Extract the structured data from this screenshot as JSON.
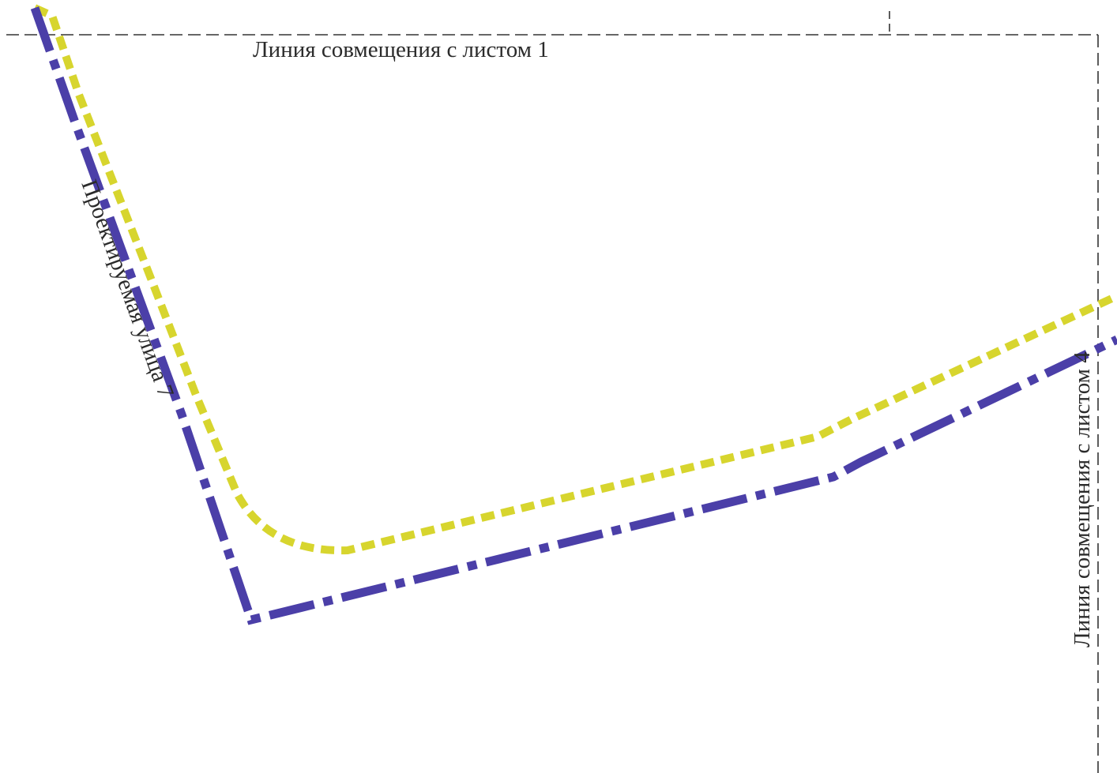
{
  "map": {
    "labels": {
      "top_match_line": "Линия совмещения с листом 1",
      "right_match_line": "Линия совмещения с листом 4",
      "street_name": "Проектируемая улица 7"
    },
    "line_styles": {
      "match_line": {
        "color": "#333333",
        "pattern": "dashed"
      },
      "red_line": {
        "color": "#4b3fa8",
        "pattern": "dash-dot"
      },
      "building_line": {
        "color": "#d7d52e",
        "pattern": "dashed"
      }
    }
  }
}
